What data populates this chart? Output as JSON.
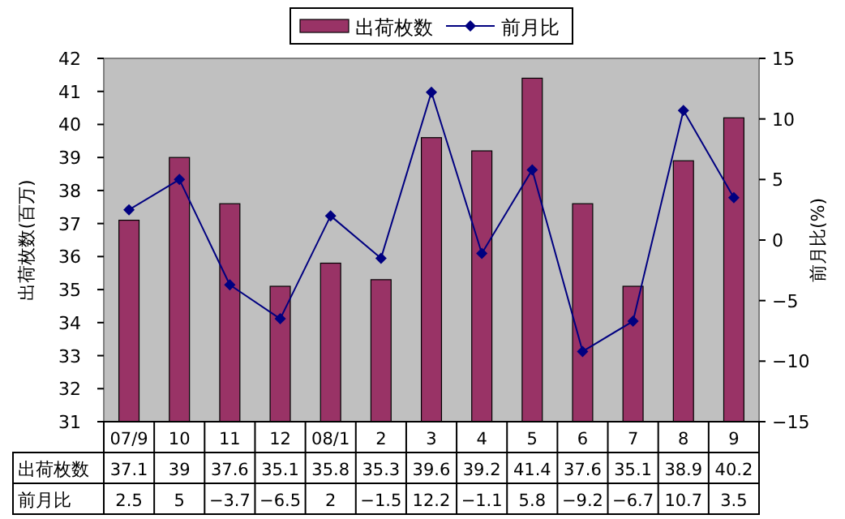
{
  "chart_data": {
    "type": "bar",
    "ylabel": "出荷枚数(百万)",
    "y2label": "前月比(%)",
    "categories": [
      "07/9",
      "10",
      "11",
      "12",
      "08/1",
      "2",
      "3",
      "4",
      "5",
      "6",
      "7",
      "8",
      "9"
    ],
    "series": [
      {
        "name": "出荷枚数",
        "color": "#993366",
        "values": [
          37.1,
          39,
          37.6,
          35.1,
          35.8,
          35.3,
          39.6,
          39.2,
          41.4,
          37.6,
          35.1,
          38.9,
          40.2
        ]
      },
      {
        "name": "前月比",
        "type": "line",
        "axis": "y2",
        "color": "#000080",
        "marker": "diamond",
        "values": [
          2.5,
          5,
          -3.7,
          -6.5,
          2,
          -1.5,
          12.2,
          -1.1,
          5.8,
          -9.2,
          -6.7,
          10.7,
          3.5
        ]
      }
    ],
    "ylim": [
      31,
      42
    ],
    "yticks": [
      31,
      32,
      33,
      34,
      35,
      36,
      37,
      38,
      39,
      40,
      41,
      42
    ],
    "y2lim": [
      -15,
      15
    ],
    "y2ticks": [
      -15,
      -10,
      -5,
      0,
      5,
      10,
      15
    ],
    "data_labels": true,
    "legend": "top",
    "grid": false
  }
}
